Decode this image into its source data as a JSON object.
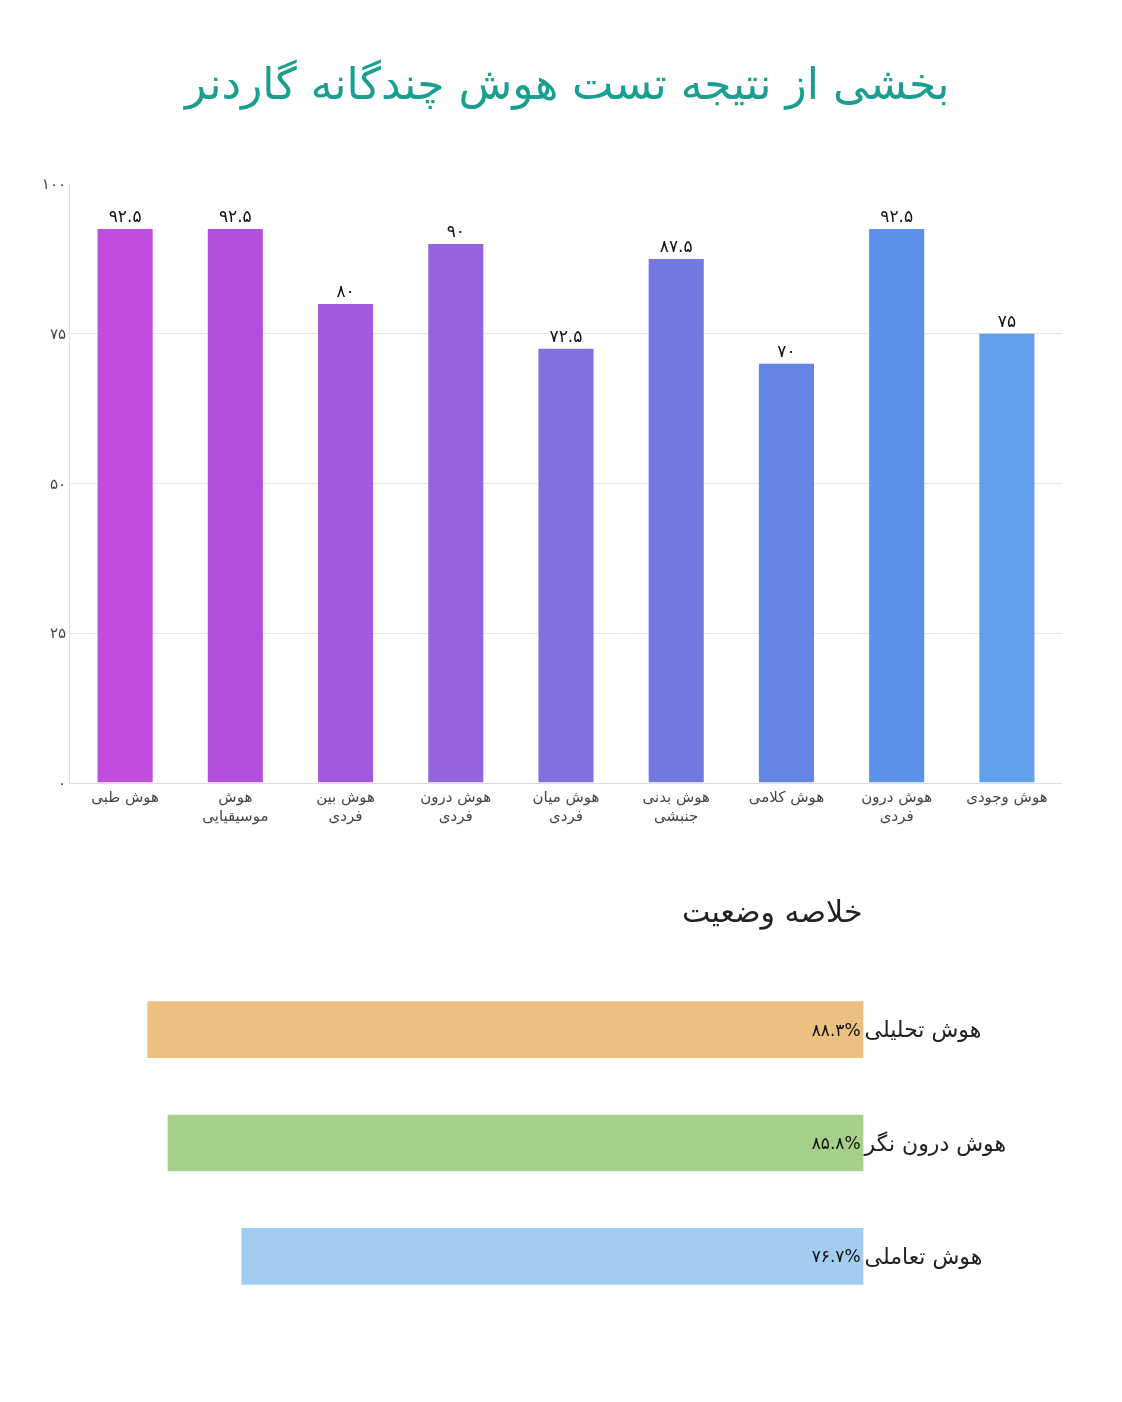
{
  "chart_data": [
    {
      "type": "bar",
      "title": "بخشی از نتیجه تست هوش چندگانه گاردنر",
      "categories": [
        "هوش طبی",
        "هوش موسیقیایی",
        "هوش بین فردی",
        "هوش درون فردی",
        "هوش میان فردی",
        "هوش بدنی جنبشی",
        "هوش کلامی",
        "هوش درون فردی",
        "هوش وجودی"
      ],
      "values": [
        92.5,
        92.5,
        80,
        90,
        72.5,
        87.5,
        70,
        92.5,
        75
      ],
      "value_labels": [
        "۹۲.۵",
        "۹۲.۵",
        "۸۰",
        "۹۰",
        "۷۲.۵",
        "۸۷.۵",
        "۷۰",
        "۹۲.۵",
        "۷۵"
      ],
      "colors": [
        "#c04ce0",
        "#b24fe0",
        "#a35ae0",
        "#9464e0",
        "#836ee2",
        "#7178e2",
        "#6585e4",
        "#5b91ea",
        "#5f9fec"
      ],
      "ylim": [
        0,
        100
      ],
      "yticks": [
        {
          "value": 0,
          "label": "۰"
        },
        {
          "value": 25,
          "label": "۲۵"
        },
        {
          "value": 50,
          "label": "۵۰"
        },
        {
          "value": 75,
          "label": "۷۵"
        },
        {
          "value": 100,
          "label": "۱۰۰"
        }
      ],
      "grid": "y",
      "legend": false
    },
    {
      "type": "bar",
      "title": "خلاصه وضعیت",
      "orientation": "horizontal",
      "categories": [
        "هوش تحلیلی",
        "هوش درون نگر",
        "هوش تعاملی"
      ],
      "values": [
        88.3,
        85.8,
        76.7
      ],
      "value_labels": [
        "۸۸.۳%",
        "۸۵.۸%",
        "۷۶.۷%"
      ],
      "colors": [
        "#ebc080",
        "#a8d08d",
        "#a3cdf0"
      ],
      "tick_labels": "y",
      "grid": false,
      "legend": false
    }
  ]
}
